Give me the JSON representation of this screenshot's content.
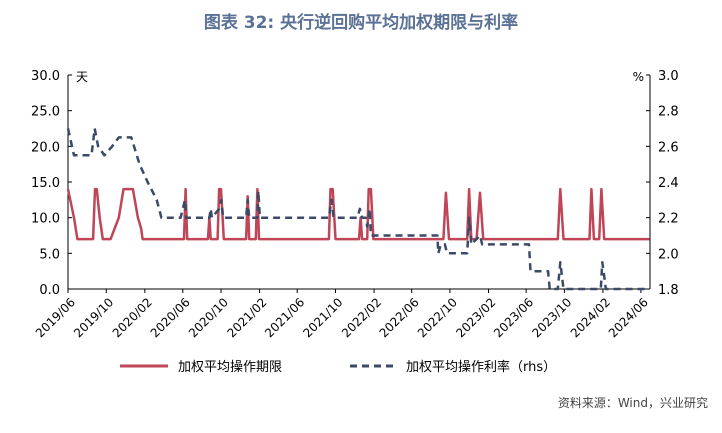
{
  "figure": {
    "title": "图表 32: 央行逆回购平均加权期限与利率",
    "source": "资料来源：Wind，兴业研究"
  },
  "colors": {
    "term": "#c04556",
    "rate": "#3b4a66",
    "title": "#5b7296"
  },
  "chart_data": {
    "type": "line",
    "title": "图表 32: 央行逆回购平均加权期限与利率",
    "left_axis": {
      "unit": "天",
      "ylim": [
        0,
        30
      ],
      "ticks": [
        "0.0",
        "5.0",
        "10.0",
        "15.0",
        "20.0",
        "25.0",
        "30.0"
      ]
    },
    "right_axis": {
      "unit": "%",
      "ylim": [
        1.8,
        3.0
      ],
      "ticks": [
        "1.8",
        "2.0",
        "2.2",
        "2.4",
        "2.6",
        "2.8",
        "3.0"
      ]
    },
    "x_ticks": [
      "2019/06",
      "2019/10",
      "2020/02",
      "2020/06",
      "2020/10",
      "2021/02",
      "2021/06",
      "2021/10",
      "2022/02",
      "2022/06",
      "2022/10",
      "2023/02",
      "2023/06",
      "2023/10",
      "2024/02",
      "2024/06"
    ],
    "grid": false,
    "legend_position": "bottom",
    "series": [
      {
        "name": "加权平均操作期限",
        "axis": "left",
        "style": "solid",
        "points": [
          [
            "2019-06-01",
            14
          ],
          [
            "2019-06-20",
            10
          ],
          [
            "2019-07-01",
            7
          ],
          [
            "2019-08-20",
            7
          ],
          [
            "2019-08-26",
            14
          ],
          [
            "2019-09-01",
            14
          ],
          [
            "2019-09-10",
            10
          ],
          [
            "2019-09-20",
            7
          ],
          [
            "2019-10-15",
            7
          ],
          [
            "2019-11-10",
            10
          ],
          [
            "2019-11-25",
            14
          ],
          [
            "2019-12-25",
            14
          ],
          [
            "2020-01-10",
            10
          ],
          [
            "2020-01-20",
            8.5
          ],
          [
            "2020-01-25",
            7
          ],
          [
            "2020-06-05",
            7
          ],
          [
            "2020-06-10",
            14
          ],
          [
            "2020-06-15",
            7
          ],
          [
            "2020-08-20",
            7
          ],
          [
            "2020-08-25",
            10
          ],
          [
            "2020-08-29",
            7
          ],
          [
            "2020-09-20",
            7
          ],
          [
            "2020-09-25",
            14
          ],
          [
            "2020-10-01",
            14
          ],
          [
            "2020-10-10",
            7
          ],
          [
            "2020-12-20",
            7
          ],
          [
            "2020-12-25",
            13
          ],
          [
            "2020-12-30",
            7
          ],
          [
            "2021-01-20",
            7
          ],
          [
            "2021-01-25",
            14
          ],
          [
            "2021-01-30",
            7
          ],
          [
            "2021-09-10",
            7
          ],
          [
            "2021-09-15",
            14
          ],
          [
            "2021-09-22",
            14
          ],
          [
            "2021-10-01",
            7
          ],
          [
            "2021-12-15",
            7
          ],
          [
            "2021-12-20",
            10
          ],
          [
            "2021-12-25",
            7
          ],
          [
            "2022-01-10",
            7
          ],
          [
            "2022-01-15",
            14
          ],
          [
            "2022-01-22",
            14
          ],
          [
            "2022-01-30",
            7
          ],
          [
            "2022-09-10",
            7
          ],
          [
            "2022-09-18",
            13.5
          ],
          [
            "2022-09-28",
            7
          ],
          [
            "2022-11-25",
            7
          ],
          [
            "2022-12-01",
            14
          ],
          [
            "2022-12-08",
            7
          ],
          [
            "2022-12-25",
            7
          ],
          [
            "2023-01-05",
            13.5
          ],
          [
            "2023-01-15",
            7
          ],
          [
            "2023-09-10",
            7
          ],
          [
            "2023-09-18",
            14
          ],
          [
            "2023-09-28",
            7
          ],
          [
            "2023-12-20",
            7
          ],
          [
            "2023-12-26",
            14
          ],
          [
            "2024-01-03",
            7
          ],
          [
            "2024-01-20",
            7
          ],
          [
            "2024-01-27",
            14
          ],
          [
            "2024-02-05",
            7
          ],
          [
            "2024-06-28",
            7
          ]
        ]
      },
      {
        "name": "加权平均操作利率（rhs）",
        "axis": "right",
        "style": "dashed",
        "points": [
          [
            "2019-06-01",
            2.7
          ],
          [
            "2019-06-20",
            2.55
          ],
          [
            "2019-08-15",
            2.55
          ],
          [
            "2019-08-25",
            2.7
          ],
          [
            "2019-09-05",
            2.6
          ],
          [
            "2019-09-25",
            2.55
          ],
          [
            "2019-10-20",
            2.6
          ],
          [
            "2019-11-10",
            2.65
          ],
          [
            "2019-12-20",
            2.65
          ],
          [
            "2020-01-15",
            2.5
          ],
          [
            "2020-02-10",
            2.4
          ],
          [
            "2020-03-10",
            2.3
          ],
          [
            "2020-03-25",
            2.2
          ],
          [
            "2020-05-25",
            2.2
          ],
          [
            "2020-06-08",
            2.3
          ],
          [
            "2020-06-12",
            2.2
          ],
          [
            "2020-08-25",
            2.2
          ],
          [
            "2020-08-29",
            2.25
          ],
          [
            "2020-09-02",
            2.2
          ],
          [
            "2020-09-25",
            2.25
          ],
          [
            "2020-10-02",
            2.3
          ],
          [
            "2020-10-08",
            2.2
          ],
          [
            "2020-12-20",
            2.2
          ],
          [
            "2020-12-25",
            2.3
          ],
          [
            "2020-12-30",
            2.2
          ],
          [
            "2021-01-25",
            2.2
          ],
          [
            "2021-01-28",
            2.35
          ],
          [
            "2021-02-02",
            2.2
          ],
          [
            "2021-09-10",
            2.2
          ],
          [
            "2021-09-18",
            2.3
          ],
          [
            "2021-09-25",
            2.2
          ],
          [
            "2021-12-10",
            2.2
          ],
          [
            "2021-12-18",
            2.25
          ],
          [
            "2021-12-25",
            2.2
          ],
          [
            "2022-01-05",
            2.2
          ],
          [
            "2022-01-10",
            2.15
          ],
          [
            "2022-01-18",
            2.25
          ],
          [
            "2022-01-22",
            2.1
          ],
          [
            "2022-08-22",
            2.1
          ],
          [
            "2022-08-25",
            2.0
          ],
          [
            "2022-09-02",
            2.05
          ],
          [
            "2022-09-15",
            2.05
          ],
          [
            "2022-09-22",
            2.0
          ],
          [
            "2022-11-25",
            2.0
          ],
          [
            "2022-12-01",
            2.2
          ],
          [
            "2022-12-08",
            2.05
          ],
          [
            "2023-01-05",
            2.1
          ],
          [
            "2023-01-12",
            2.05
          ],
          [
            "2023-06-10",
            2.05
          ],
          [
            "2023-06-15",
            1.9
          ],
          [
            "2023-08-10",
            1.9
          ],
          [
            "2023-08-15",
            1.8
          ],
          [
            "2023-09-10",
            1.8
          ],
          [
            "2023-09-18",
            1.95
          ],
          [
            "2023-09-28",
            1.8
          ],
          [
            "2024-01-25",
            1.8
          ],
          [
            "2024-01-30",
            1.95
          ],
          [
            "2024-02-03",
            1.9
          ],
          [
            "2024-02-10",
            1.8
          ],
          [
            "2024-06-28",
            1.8
          ]
        ]
      }
    ]
  }
}
